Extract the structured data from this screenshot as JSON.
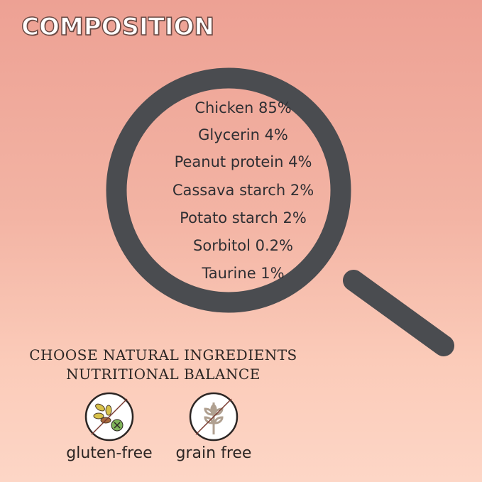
{
  "title": "COMPOSITION",
  "ingredients": [
    "Chicken 85%",
    "Glycerin 4%",
    "Peanut protein 4%",
    "Cassava starch 2%",
    "Potato starch 2%",
    "Sorbitol 0.2%",
    "Taurine 1%"
  ],
  "tagline": [
    "CHOOSE NATURAL INGREDIENTS",
    "NUTRITIONAL BALANCE"
  ],
  "badges": [
    {
      "label": "gluten-free",
      "icon": "no-gluten-icon"
    },
    {
      "label": "grain free",
      "icon": "no-grain-icon"
    }
  ],
  "colors": {
    "magnifier": "#4a4c50",
    "background_top": "#eda194",
    "background_bottom": "#fdd6c6"
  }
}
